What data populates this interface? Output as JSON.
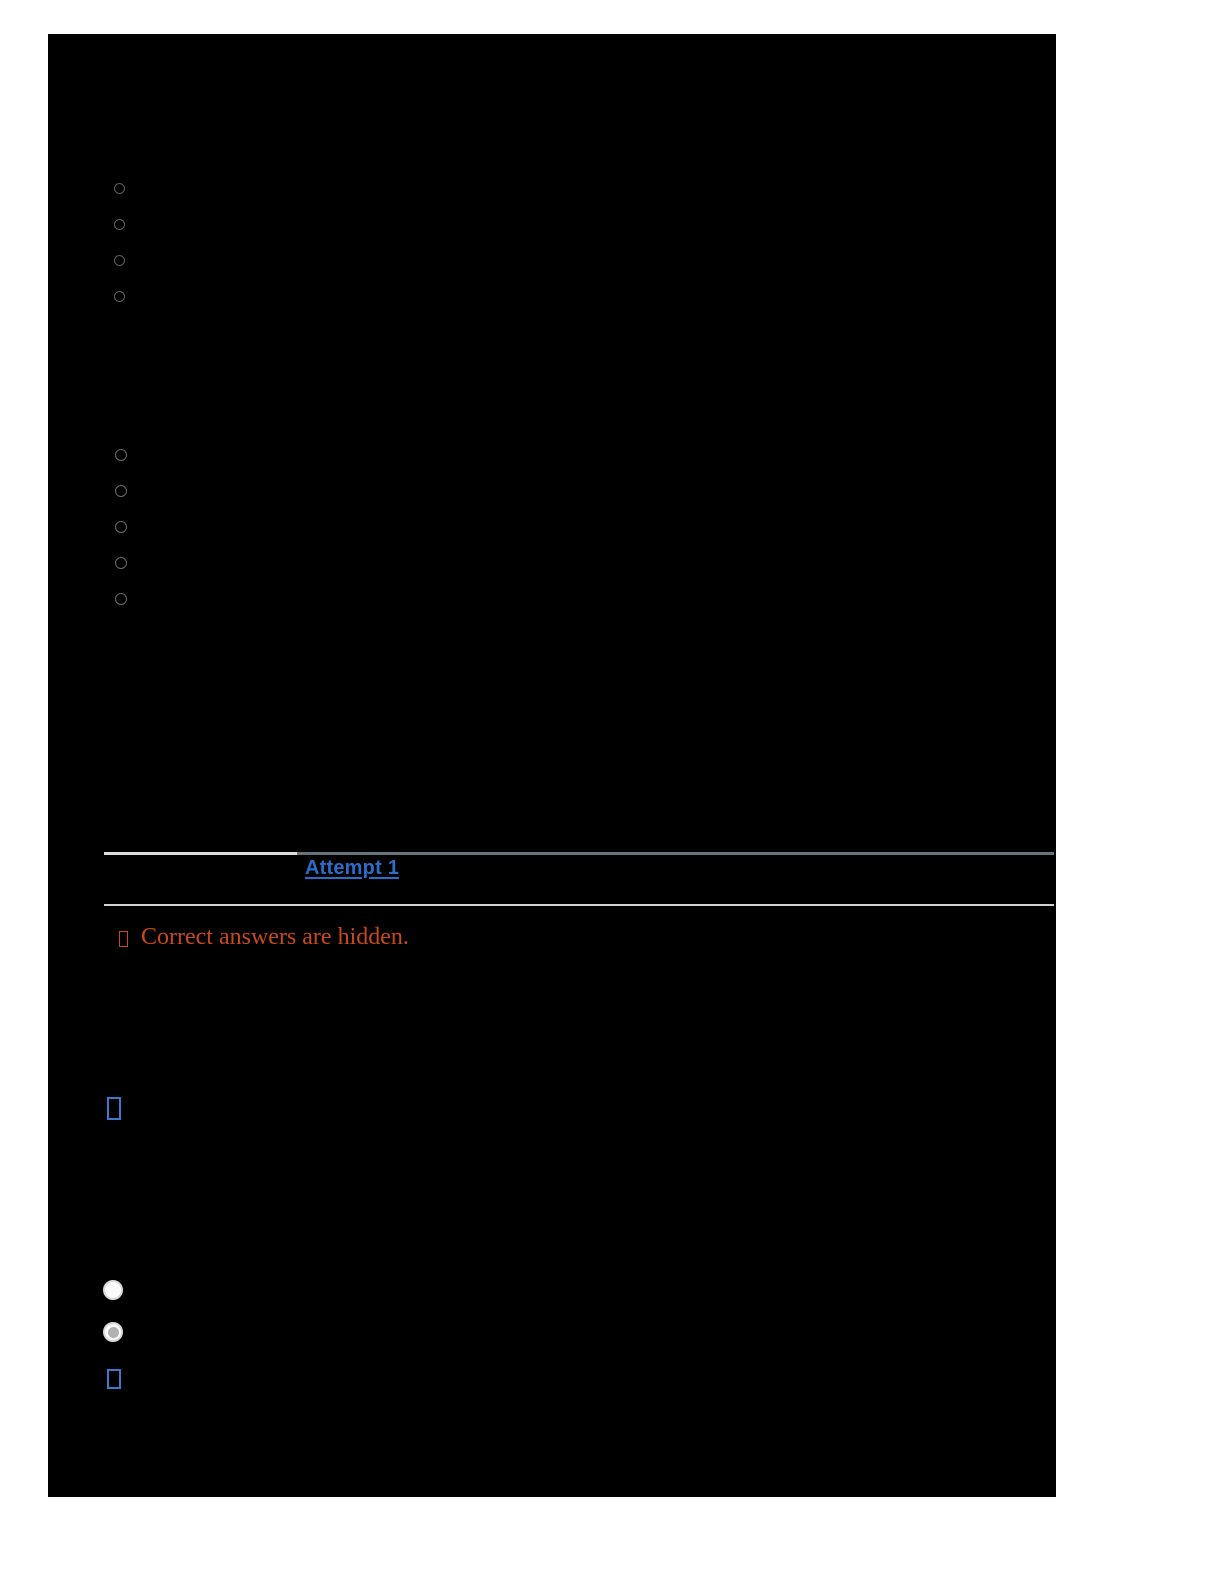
{
  "page": {
    "background_color": "#ffffff",
    "canvas_background_color": "#000000",
    "note": "quiz results page rendered dark; body text invisible against black"
  },
  "attempt_history": {
    "attempt_label": "Attempt 1",
    "link_color": "#2b6cc8",
    "header_rule_left_color": "#dcdcdc",
    "header_rule_right_color": "#66737b",
    "bottom_rule_color": "#ced2d4"
  },
  "notice": {
    "text": "Correct answers are hidden.",
    "color": "#c8491a",
    "icon": "hidden-glyph-box"
  },
  "questions": [
    {
      "id": "question-1",
      "type": "multiple-choice",
      "options": [
        {
          "label": "",
          "selected": false
        },
        {
          "label": "",
          "selected": false
        },
        {
          "label": "",
          "selected": false
        },
        {
          "label": "",
          "selected": false
        }
      ]
    },
    {
      "id": "question-2",
      "type": "multiple-choice",
      "options": [
        {
          "label": "",
          "selected": false
        },
        {
          "label": "",
          "selected": false
        },
        {
          "label": "",
          "selected": false
        },
        {
          "label": "",
          "selected": false
        },
        {
          "label": "",
          "selected": false
        }
      ]
    },
    {
      "id": "question-3",
      "type": "multiple-choice",
      "options": [
        {
          "label": "",
          "selected": false
        },
        {
          "label": "",
          "selected": true
        }
      ]
    }
  ],
  "icons": {
    "tofu_color": "#3a79cc",
    "items": [
      "unrendered-glyph-box",
      "unrendered-glyph-box"
    ]
  }
}
